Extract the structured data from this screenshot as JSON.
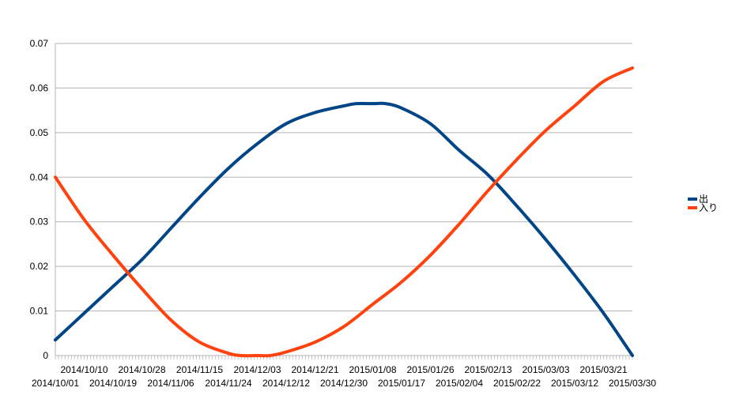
{
  "chart_data": {
    "type": "line",
    "title": "",
    "xlabel": "",
    "ylabel": "",
    "x_start": "2014/10/01",
    "x_end": "2015/03/30",
    "ylim": [
      0,
      0.07
    ],
    "y_ticks": [
      0,
      0.01,
      0.02,
      0.03,
      0.04,
      0.05,
      0.06,
      0.07
    ],
    "y_tick_labels": [
      "0",
      "0.01",
      "0.02",
      "0.03",
      "0.04",
      "0.05",
      "0.06",
      "0.07"
    ],
    "x_tick_labels_upper": [
      "2014/10/10",
      "2014/10/28",
      "2014/11/15",
      "2014/12/03",
      "2014/12/21",
      "2015/01/08",
      "2015/01/26",
      "2015/02/13",
      "2015/03/03",
      "2015/03/21"
    ],
    "x_tick_labels_lower": [
      "2014/10/01",
      "2014/10/19",
      "2014/11/06",
      "2014/11/24",
      "2014/12/12",
      "2014/12/30",
      "2015/01/17",
      "2015/02/04",
      "2015/02/22",
      "2015/03/12",
      "2015/03/30"
    ],
    "grid": true,
    "legend_position": "right",
    "series": [
      {
        "name": "出",
        "color": "#004586",
        "x": [
          "2014/10/01",
          "2014/10/10",
          "2014/10/19",
          "2014/10/28",
          "2014/11/06",
          "2014/11/15",
          "2014/11/24",
          "2014/12/03",
          "2014/12/12",
          "2014/12/21",
          "2014/12/30",
          "2015/01/03",
          "2015/01/08",
          "2015/01/12",
          "2015/01/17",
          "2015/01/26",
          "2015/02/04",
          "2015/02/13",
          "2015/02/22",
          "2015/03/03",
          "2015/03/12",
          "2015/03/21",
          "2015/03/30"
        ],
        "values": [
          0.0035,
          0.0095,
          0.0155,
          0.0215,
          0.0285,
          0.0355,
          0.042,
          0.0475,
          0.052,
          0.0545,
          0.056,
          0.0565,
          0.0565,
          0.0565,
          0.0555,
          0.052,
          0.046,
          0.0405,
          0.0335,
          0.026,
          0.018,
          0.0095,
          0.0
        ]
      },
      {
        "name": "入り",
        "color": "#ff420e",
        "x": [
          "2014/10/01",
          "2014/10/10",
          "2014/10/19",
          "2014/10/28",
          "2014/11/06",
          "2014/11/15",
          "2014/11/24",
          "2014/11/28",
          "2014/12/03",
          "2014/12/07",
          "2014/12/12",
          "2014/12/21",
          "2014/12/30",
          "2015/01/08",
          "2015/01/17",
          "2015/01/26",
          "2015/02/04",
          "2015/02/13",
          "2015/02/22",
          "2015/03/03",
          "2015/03/12",
          "2015/03/21",
          "2015/03/30"
        ],
        "values": [
          0.04,
          0.0305,
          0.0225,
          0.015,
          0.008,
          0.003,
          0.0005,
          0.0,
          0.0,
          0.0,
          0.0008,
          0.003,
          0.0065,
          0.0115,
          0.0165,
          0.0225,
          0.0295,
          0.037,
          0.044,
          0.0505,
          0.056,
          0.0615,
          0.0645
        ]
      }
    ]
  }
}
